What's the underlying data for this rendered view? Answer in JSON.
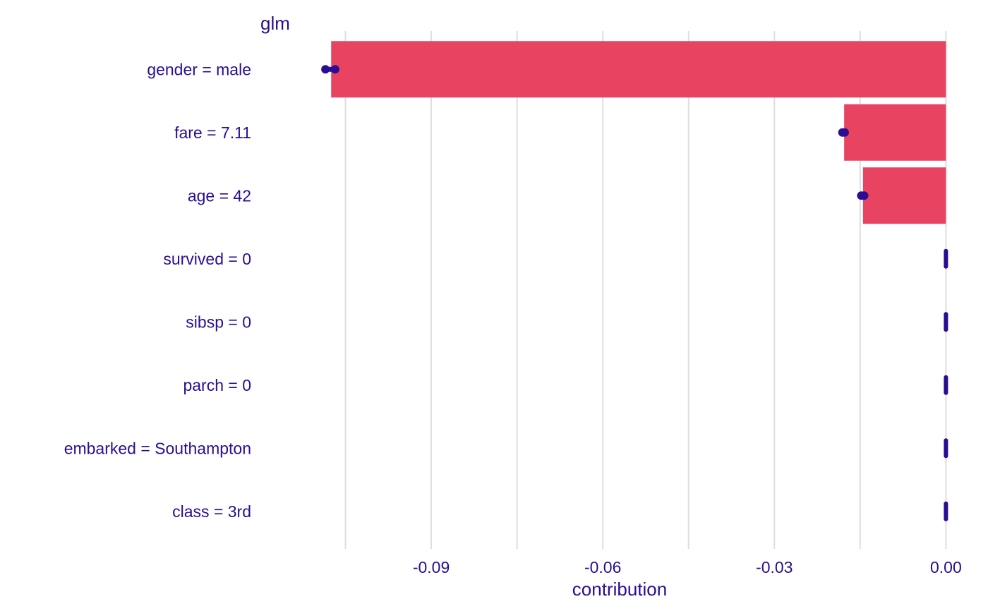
{
  "chart_data": {
    "type": "bar",
    "title": "glm",
    "xlabel": "contribution",
    "ylabel": "",
    "orientation": "horizontal",
    "categories": [
      "gender = male",
      "fare = 7.11",
      "age = 42",
      "survived = 0",
      "sibsp = 0",
      "parch = 0",
      "embarked = Southampton",
      "class = 3rd"
    ],
    "values": [
      -0.1075,
      -0.0178,
      -0.0145,
      0.0,
      0.0,
      0.0,
      0.0,
      0.0
    ],
    "spread": [
      [
        -0.1085,
        -0.1068
      ],
      [
        -0.0181,
        -0.0177
      ],
      [
        -0.0148,
        -0.0143
      ],
      [
        0.0,
        0.0
      ],
      [
        0.0,
        0.0
      ],
      [
        0.0,
        0.0
      ],
      [
        0.0,
        0.0
      ],
      [
        0.0,
        0.0
      ]
    ],
    "xlim": [
      -0.1195,
      0.0002
    ],
    "x_ticks": [
      -0.09,
      -0.06,
      -0.03,
      0.0
    ],
    "x_tick_labels": [
      "-0.09",
      "-0.06",
      "-0.03",
      "0.00"
    ],
    "grid": true,
    "legend": "none",
    "colors": {
      "bar": "#E84461",
      "points": "#2A0D92",
      "text": "#2A0D92",
      "grid": "#DEDEDE"
    }
  }
}
